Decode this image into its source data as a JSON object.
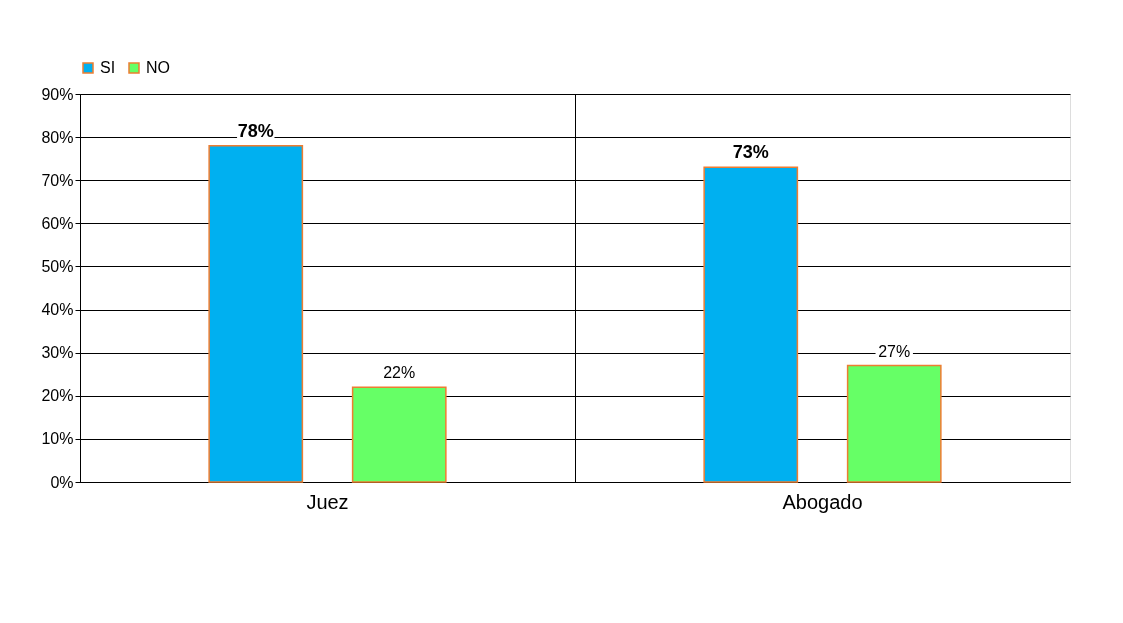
{
  "chart_data": {
    "type": "bar",
    "categories": [
      "Juez",
      "Abogado"
    ],
    "series": [
      {
        "name": "SI",
        "color": "#00b0f0",
        "values": [
          78,
          73
        ],
        "value_labels": [
          "78%",
          "73%"
        ]
      },
      {
        "name": "NO",
        "color": "#66ff66",
        "values": [
          22,
          27
        ],
        "value_labels": [
          "22%",
          "27%"
        ]
      }
    ],
    "ylim": [
      0,
      90
    ],
    "yticks": [
      {
        "value": 0,
        "label": "0%"
      },
      {
        "value": 10,
        "label": "10%"
      },
      {
        "value": 20,
        "label": "20%"
      },
      {
        "value": 30,
        "label": "30%"
      },
      {
        "value": 40,
        "label": "40%"
      },
      {
        "value": 50,
        "label": "50%"
      },
      {
        "value": 60,
        "label": "60%"
      },
      {
        "value": 70,
        "label": "70%"
      },
      {
        "value": 80,
        "label": "80%"
      },
      {
        "value": 90,
        "label": "90%"
      }
    ],
    "grid": true,
    "legend": "top"
  }
}
